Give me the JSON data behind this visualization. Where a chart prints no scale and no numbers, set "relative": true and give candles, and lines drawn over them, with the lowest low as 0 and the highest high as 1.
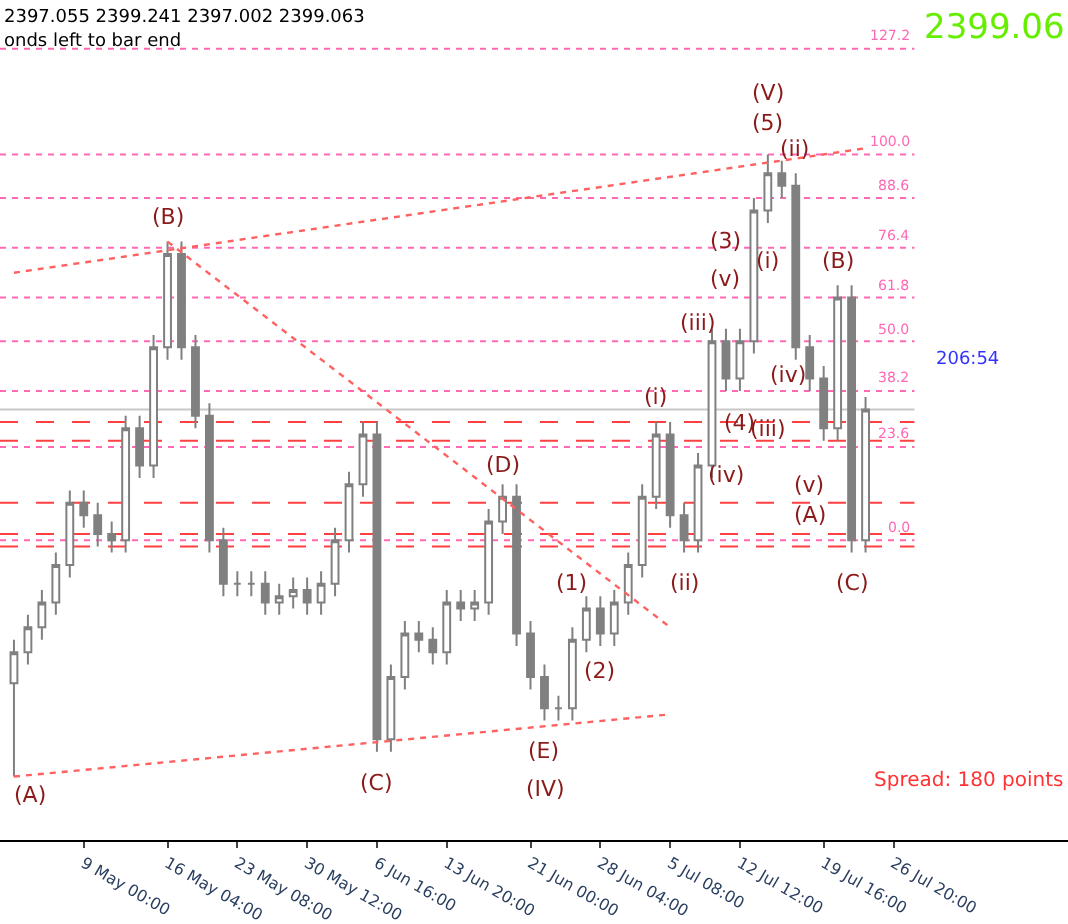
{
  "chart_data": {
    "type": "candlestick",
    "relative": true,
    "color": "#808080",
    "categories": [
      null,
      null,
      null,
      null,
      null,
      "9 May 00:00",
      null,
      null,
      null,
      null,
      null,
      "16 May 04:00",
      null,
      null,
      null,
      null,
      "23 May 08:00",
      null,
      null,
      null,
      null,
      "30 May 12:00",
      null,
      null,
      null,
      null,
      "6 Jun 16:00",
      null,
      null,
      null,
      null,
      "13 Jun 20:00",
      null,
      null,
      null,
      null,
      null,
      "21 Jun 00:00",
      null,
      null,
      null,
      null,
      "28 Jun 04:00",
      null,
      null,
      null,
      null,
      "5 Jul 08:00",
      null,
      null,
      null,
      null,
      "12 Jul 12:00",
      null,
      null,
      null,
      null,
      null,
      "19 Jul 16:00",
      null,
      null,
      null,
      null,
      "26 Jul 20:00"
    ],
    "ohlc": [
      [
        0.15,
        0.22,
        0.0,
        0.2
      ],
      [
        0.2,
        0.26,
        0.18,
        0.24
      ],
      [
        0.24,
        0.3,
        0.22,
        0.28
      ],
      [
        0.28,
        0.36,
        0.26,
        0.34
      ],
      [
        0.34,
        0.46,
        0.32,
        0.44
      ],
      [
        0.44,
        0.46,
        0.4,
        0.42
      ],
      [
        0.42,
        0.44,
        0.37,
        0.39
      ],
      [
        0.39,
        0.41,
        0.36,
        0.38
      ],
      [
        0.38,
        0.58,
        0.36,
        0.56
      ],
      [
        0.56,
        0.58,
        0.48,
        0.5
      ],
      [
        0.5,
        0.71,
        0.48,
        0.69
      ],
      [
        0.69,
        0.86,
        0.67,
        0.84
      ],
      [
        0.84,
        0.86,
        0.67,
        0.69
      ],
      [
        0.69,
        0.71,
        0.56,
        0.58
      ],
      [
        0.58,
        0.6,
        0.36,
        0.38
      ],
      [
        0.38,
        0.4,
        0.29,
        0.31
      ],
      [
        0.31,
        0.33,
        0.29,
        0.31
      ],
      [
        0.31,
        0.33,
        0.29,
        0.31
      ],
      [
        0.31,
        0.33,
        0.26,
        0.28
      ],
      [
        0.28,
        0.31,
        0.26,
        0.29
      ],
      [
        0.29,
        0.32,
        0.27,
        0.3
      ],
      [
        0.3,
        0.32,
        0.26,
        0.28
      ],
      [
        0.28,
        0.33,
        0.26,
        0.31
      ],
      [
        0.31,
        0.4,
        0.29,
        0.38
      ],
      [
        0.38,
        0.49,
        0.36,
        0.47
      ],
      [
        0.47,
        0.57,
        0.45,
        0.55
      ],
      [
        0.55,
        0.57,
        0.04,
        0.06
      ],
      [
        0.06,
        0.18,
        0.04,
        0.16
      ],
      [
        0.16,
        0.25,
        0.14,
        0.23
      ],
      [
        0.23,
        0.25,
        0.2,
        0.22
      ],
      [
        0.22,
        0.24,
        0.18,
        0.2
      ],
      [
        0.2,
        0.3,
        0.18,
        0.28
      ],
      [
        0.28,
        0.3,
        0.25,
        0.27
      ],
      [
        0.27,
        0.3,
        0.25,
        0.28
      ],
      [
        0.28,
        0.43,
        0.26,
        0.41
      ],
      [
        0.41,
        0.47,
        0.39,
        0.45
      ],
      [
        0.45,
        0.47,
        0.21,
        0.23
      ],
      [
        0.23,
        0.25,
        0.14,
        0.16
      ],
      [
        0.16,
        0.18,
        0.09,
        0.11
      ],
      [
        0.11,
        0.13,
        0.09,
        0.11
      ],
      [
        0.11,
        0.24,
        0.09,
        0.22
      ],
      [
        0.22,
        0.29,
        0.2,
        0.27
      ],
      [
        0.27,
        0.29,
        0.21,
        0.23
      ],
      [
        0.23,
        0.3,
        0.21,
        0.28
      ],
      [
        0.28,
        0.36,
        0.26,
        0.34
      ],
      [
        0.34,
        0.47,
        0.32,
        0.45
      ],
      [
        0.45,
        0.57,
        0.43,
        0.55
      ],
      [
        0.55,
        0.57,
        0.4,
        0.42
      ],
      [
        0.42,
        0.44,
        0.36,
        0.38
      ],
      [
        0.38,
        0.52,
        0.36,
        0.5
      ],
      [
        0.5,
        0.72,
        0.48,
        0.7
      ],
      [
        0.7,
        0.72,
        0.62,
        0.64
      ],
      [
        0.64,
        0.72,
        0.62,
        0.7
      ],
      [
        0.7,
        0.93,
        0.68,
        0.91
      ],
      [
        0.91,
        1.0,
        0.89,
        0.97
      ],
      [
        0.97,
        0.99,
        0.93,
        0.95
      ],
      [
        0.95,
        0.97,
        0.67,
        0.69
      ],
      [
        0.69,
        0.71,
        0.62,
        0.64
      ],
      [
        0.64,
        0.66,
        0.54,
        0.56
      ],
      [
        0.56,
        0.79,
        0.54,
        0.77
      ],
      [
        0.77,
        0.79,
        0.36,
        0.38
      ],
      [
        0.38,
        0.61,
        0.36,
        0.59
      ],
      null,
      null
    ],
    "series": [
      {
        "type": "line",
        "color": "#ff6060",
        "line_style": "dotted",
        "values": [
          0.0,
          null,
          null,
          null,
          null,
          null,
          null,
          null,
          null,
          null,
          null,
          null,
          null,
          null,
          null,
          null,
          null,
          null,
          null,
          null,
          null,
          null,
          null,
          null,
          null,
          null,
          null,
          null,
          null,
          null,
          null,
          null,
          null,
          null,
          null,
          null,
          null,
          null,
          null,
          null,
          null,
          null,
          null,
          null,
          null,
          null,
          null,
          0.1,
          null,
          null,
          null,
          null,
          null,
          null,
          null,
          null,
          null,
          null,
          null,
          null,
          null,
          null,
          null,
          null
        ]
      },
      {
        "type": "line",
        "color": "#ff6060",
        "line_style": "dotted",
        "values": [
          0.81,
          null,
          null,
          null,
          null,
          null,
          null,
          null,
          null,
          null,
          null,
          null,
          null,
          null,
          null,
          null,
          null,
          null,
          null,
          null,
          null,
          null,
          null,
          null,
          null,
          null,
          null,
          null,
          null,
          null,
          null,
          null,
          null,
          null,
          null,
          null,
          null,
          null,
          null,
          null,
          null,
          null,
          null,
          null,
          null,
          null,
          null,
          null,
          null,
          null,
          null,
          null,
          null,
          null,
          null,
          null,
          null,
          null,
          null,
          null,
          null,
          1.01,
          null,
          null
        ]
      },
      {
        "type": "line",
        "color": "#ff6060",
        "line_style": "dotted",
        "values": [
          null,
          null,
          null,
          null,
          null,
          null,
          null,
          null,
          null,
          null,
          null,
          0.86,
          null,
          null,
          null,
          null,
          null,
          null,
          null,
          null,
          null,
          null,
          null,
          null,
          null,
          null,
          null,
          null,
          null,
          null,
          null,
          null,
          null,
          null,
          null,
          null,
          null,
          null,
          null,
          null,
          null,
          null,
          null,
          null,
          null,
          null,
          null,
          0.24,
          null,
          null,
          null,
          null,
          null,
          null,
          null,
          null,
          null,
          null,
          null,
          null,
          null,
          null,
          null,
          null
        ]
      }
    ],
    "ref_lines": [
      {
        "axis": "y",
        "value": 1.17,
        "color": "#ff69b4",
        "line_style": "dotted"
      },
      {
        "axis": "y",
        "value": 1.0,
        "color": "#ff69b4",
        "line_style": "dotted"
      },
      {
        "axis": "y",
        "value": 0.93,
        "color": "#ff69b4",
        "line_style": "dotted"
      },
      {
        "axis": "y",
        "value": 0.85,
        "color": "#ff69b4",
        "line_style": "dotted"
      },
      {
        "axis": "y",
        "value": 0.77,
        "color": "#ff69b4",
        "line_style": "dotted"
      },
      {
        "axis": "y",
        "value": 0.7,
        "color": "#ff69b4",
        "line_style": "dotted"
      },
      {
        "axis": "y",
        "value": 0.62,
        "color": "#ff69b4",
        "line_style": "dotted"
      },
      {
        "axis": "y",
        "value": 0.53,
        "color": "#ff69b4",
        "line_style": "dotted"
      },
      {
        "axis": "y",
        "value": 0.38,
        "color": "#ff69b4",
        "line_style": "dotted"
      },
      {
        "axis": "y",
        "value": 0.59,
        "color": "#c8c8c8",
        "line_style": "solid"
      },
      {
        "axis": "y",
        "value": 0.57,
        "color": "#ff4040",
        "line_style": "dashed"
      },
      {
        "axis": "y",
        "value": 0.54,
        "color": "#ff4040",
        "line_style": "dashed"
      },
      {
        "axis": "y",
        "value": 0.44,
        "color": "#ff4040",
        "line_style": "dashed"
      },
      {
        "axis": "y",
        "value": 0.39,
        "color": "#ff4040",
        "line_style": "dashed"
      },
      {
        "axis": "y",
        "value": 0.37,
        "color": "#ff4040",
        "line_style": "dashed"
      }
    ],
    "annotations": [
      "2397.055 2399.241 2397.002 2399.063",
      "onds left to bar end",
      "2399.06",
      "206:54",
      "Spread: 180 points",
      "(A)",
      "(B)",
      "(C)",
      "(D)",
      "(E)",
      "(IV)",
      "(1)",
      "(2)",
      "(i)",
      "(ii)",
      "(iii)",
      "(iv)",
      "(4)",
      "(3)",
      "(v)",
      "(5)",
      "(V)",
      "(ii)",
      "(i)",
      "(iii)",
      "(iv)",
      "(v)",
      "(A)",
      "(B)",
      "(C)",
      "127.2",
      "100.0",
      "88.6",
      "76.4",
      "61.8",
      "50.0",
      "38.2",
      "23.6",
      "0.0"
    ],
    "grid": false
  }
}
